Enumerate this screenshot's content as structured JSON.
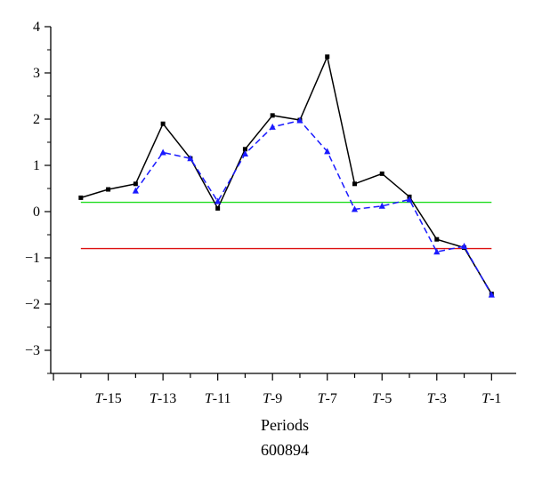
{
  "chart_data": {
    "type": "line",
    "xlabel": "Periods",
    "caption": "600894",
    "x_ticks": [
      {
        "italic": "T",
        "rest": "-15",
        "x": -15
      },
      {
        "italic": "T",
        "rest": "-13",
        "x": -13
      },
      {
        "italic": "T",
        "rest": "-11",
        "x": -11
      },
      {
        "italic": "T",
        "rest": "-9",
        "x": -9
      },
      {
        "italic": "T",
        "rest": "-7",
        "x": -7
      },
      {
        "italic": "T",
        "rest": "-5",
        "x": -5
      },
      {
        "italic": "T",
        "rest": "-3",
        "x": -3
      },
      {
        "italic": "T",
        "rest": "-1",
        "x": -1
      }
    ],
    "xlim": [
      -17.1,
      -0.1
    ],
    "ylim": [
      -3.5,
      4
    ],
    "y_ticks": [
      4,
      3,
      2,
      1,
      0,
      -1,
      -2,
      -3
    ],
    "y_tick_labels": [
      "4",
      "3",
      "2",
      "1",
      "0",
      "−1",
      "−2",
      "−3"
    ],
    "series": [
      {
        "style": "solid",
        "color": "#000000",
        "marker": "square",
        "x": [
          -16,
          -15,
          -14,
          -13,
          -12,
          -11,
          -10,
          -9,
          -8,
          -7,
          -6,
          -5,
          -4,
          -3,
          -2,
          -1
        ],
        "values": [
          0.3,
          0.48,
          0.6,
          1.9,
          1.15,
          0.07,
          1.35,
          2.08,
          1.98,
          3.35,
          0.6,
          0.82,
          0.32,
          -0.6,
          -0.78,
          -1.78
        ]
      },
      {
        "style": "dashed",
        "color": "#1a1aff",
        "marker": "triangle",
        "x": [
          -14,
          -13,
          -12,
          -11,
          -10,
          -9,
          -8,
          -7,
          -6,
          -5,
          -4,
          -3,
          -2,
          -1
        ],
        "values": [
          0.45,
          1.28,
          1.15,
          0.22,
          1.25,
          1.83,
          1.97,
          1.3,
          0.05,
          0.12,
          0.26,
          -0.87,
          -0.75,
          -1.8
        ]
      }
    ],
    "reference_lines": [
      {
        "value": 0.2,
        "color": "#22dd22",
        "x_range": [
          -16,
          -1
        ]
      },
      {
        "value": -0.8,
        "color": "#dd1111",
        "x_range": [
          -16,
          -1
        ]
      }
    ]
  }
}
